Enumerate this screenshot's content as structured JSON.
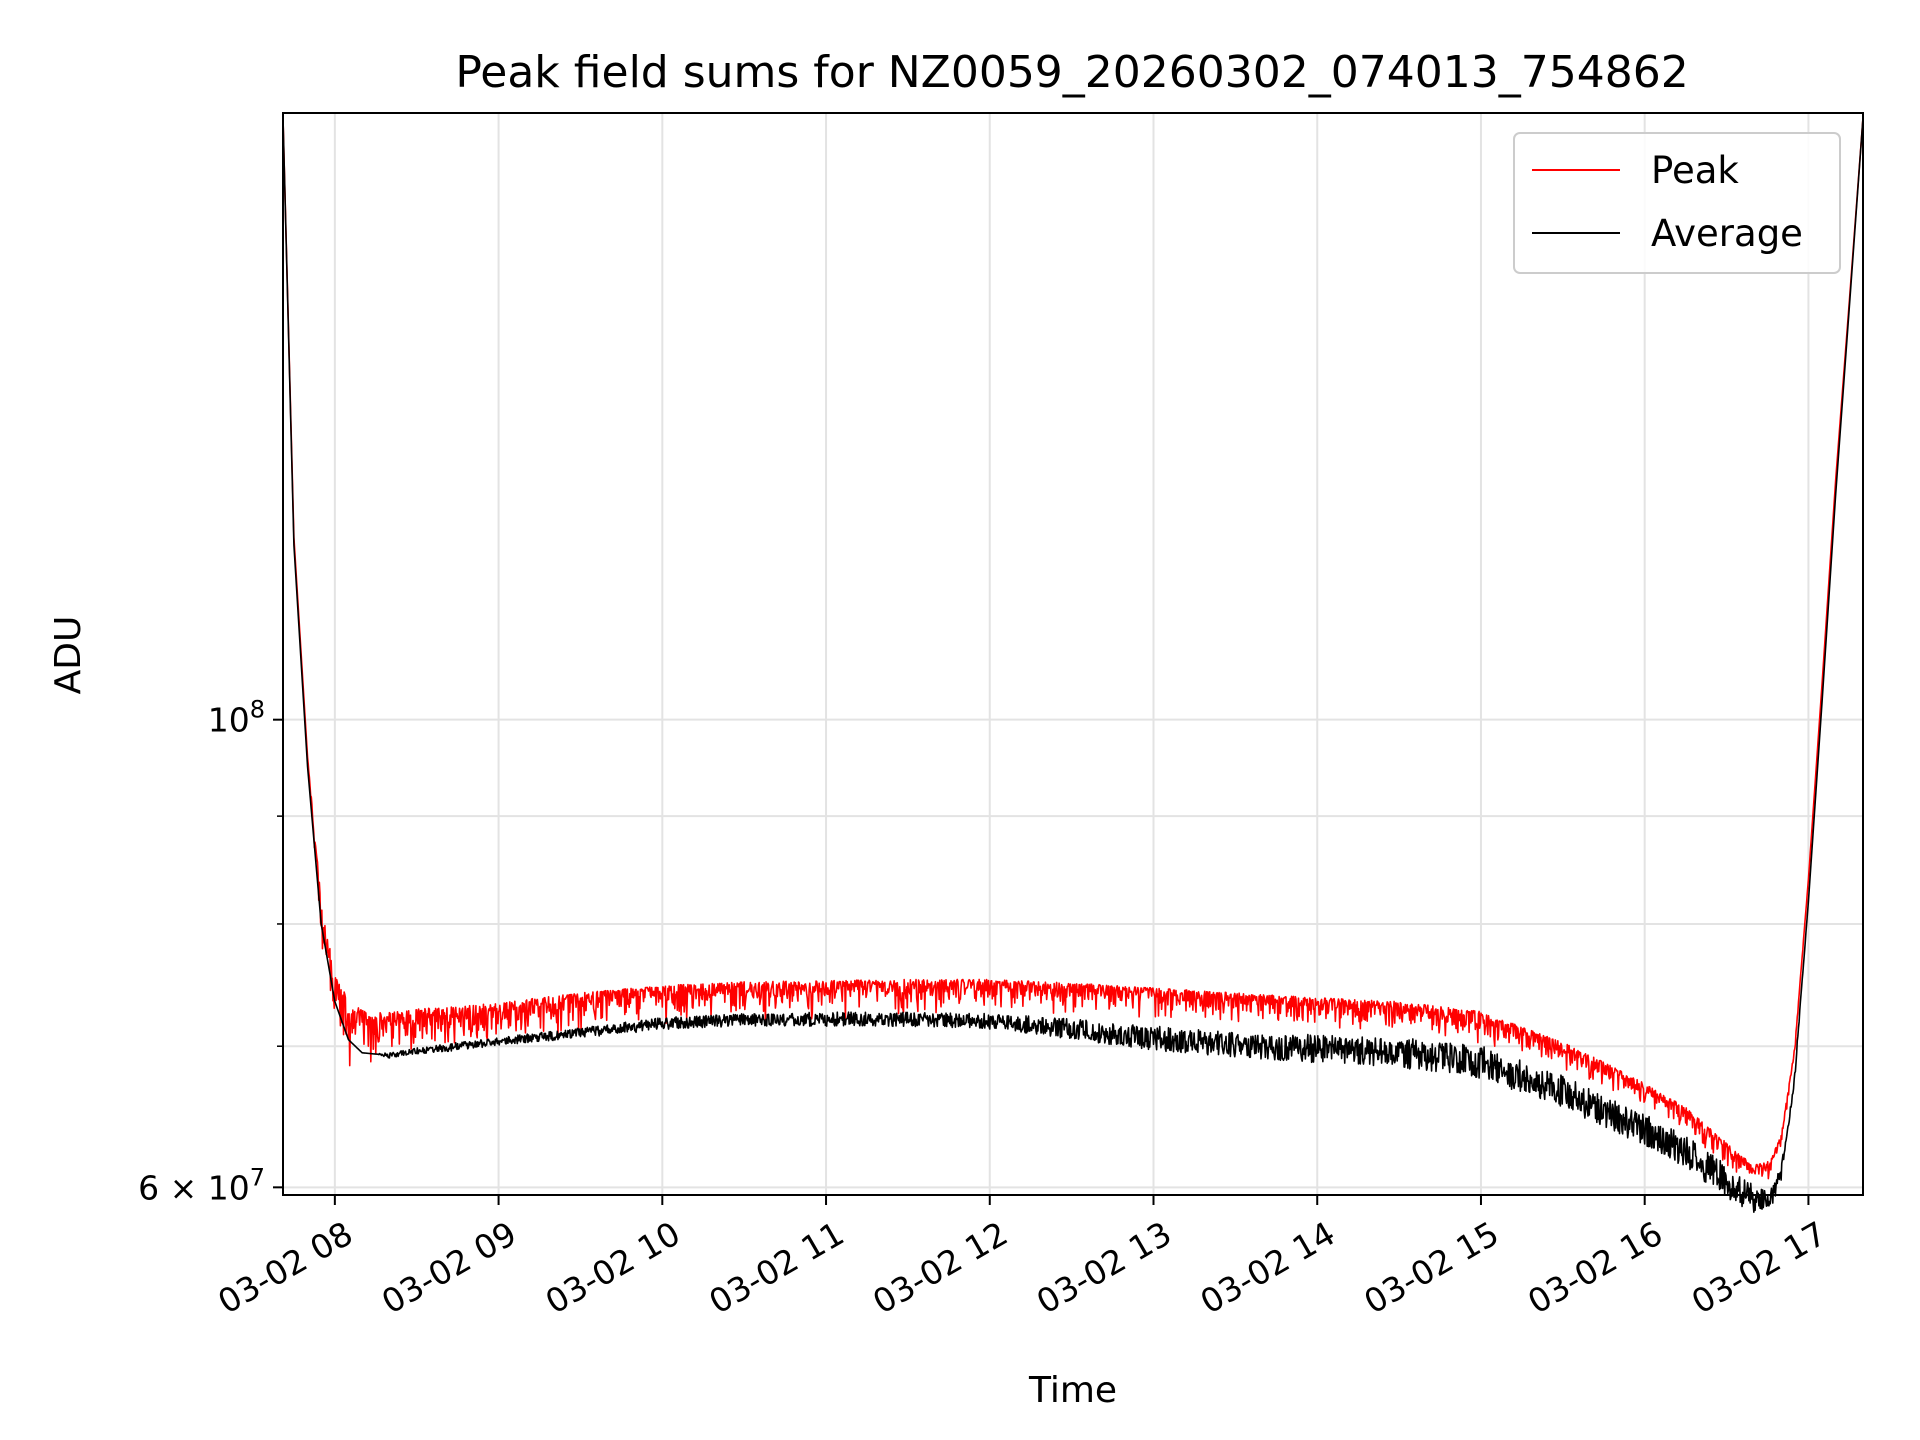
{
  "chart_data": {
    "type": "line",
    "title": "Peak field sums for NZ0059_20260302_074013_754862",
    "xlabel": "Time",
    "ylabel": "ADU",
    "y_scale": "log",
    "ylim": [
      59500000,
      194000000
    ],
    "xlim": [
      "2026-03-02 07:41",
      "2026-03-02 17:20"
    ],
    "grid": true,
    "legend_position": "top-right",
    "x_ticks": [
      "03-02 08",
      "03-02 09",
      "03-02 10",
      "03-02 11",
      "03-02 12",
      "03-02 13",
      "03-02 14",
      "03-02 15",
      "03-02 16",
      "03-02 17"
    ],
    "y_ticks": [
      {
        "value": 100000000,
        "base": "10",
        "exp": "8"
      },
      {
        "value": 60000000,
        "mantissa": "6 × ",
        "base": "10",
        "exp": "7"
      }
    ],
    "y_minor_ticks": [
      70000000,
      80000000,
      90000000
    ],
    "x": [
      "2026-03-02 07:41",
      "2026-03-02 07:45",
      "2026-03-02 07:50",
      "2026-03-02 07:55",
      "2026-03-02 08:00",
      "2026-03-02 08:05",
      "2026-03-02 08:10",
      "2026-03-02 08:15",
      "2026-03-02 08:20",
      "2026-03-02 08:30",
      "2026-03-02 08:45",
      "2026-03-02 09:00",
      "2026-03-02 09:30",
      "2026-03-02 10:00",
      "2026-03-02 10:30",
      "2026-03-02 11:00",
      "2026-03-02 11:30",
      "2026-03-02 12:00",
      "2026-03-02 12:30",
      "2026-03-02 13:00",
      "2026-03-02 13:30",
      "2026-03-02 14:00",
      "2026-03-02 14:30",
      "2026-03-02 15:00",
      "2026-03-02 15:30",
      "2026-03-02 15:45",
      "2026-03-02 16:00",
      "2026-03-02 16:15",
      "2026-03-02 16:30",
      "2026-03-02 16:40",
      "2026-03-02 16:46",
      "2026-03-02 16:50",
      "2026-03-02 16:55",
      "2026-03-02 17:00",
      "2026-03-02 17:05",
      "2026-03-02 17:10",
      "2026-03-02 17:15",
      "2026-03-02 17:20"
    ],
    "series": [
      {
        "name": "Peak",
        "color": "#ff0000",
        "values": [
          193000000,
          122000000,
          96000000,
          82000000,
          76000000,
          73500000,
          72800000,
          72600000,
          72700000,
          72900000,
          73100000,
          73400000,
          74200000,
          74800000,
          75100000,
          75200000,
          75300000,
          75300000,
          75000000,
          74600000,
          74200000,
          73800000,
          73500000,
          72700000,
          70300000,
          68800000,
          67200000,
          65500000,
          63000000,
          61500000,
          61800000,
          63500000,
          70000000,
          84000000,
          104000000,
          130000000,
          158000000,
          193000000
        ],
        "noise_amplitude": [
          0,
          0,
          0,
          0.02,
          0.025,
          0.03,
          0.025,
          0.02,
          0.018,
          0.018,
          0.016,
          0.015,
          0.014,
          0.014,
          0.014,
          0.014,
          0.014,
          0.012,
          0.012,
          0.012,
          0.012,
          0.012,
          0.012,
          0.012,
          0.01,
          0.01,
          0.01,
          0.01,
          0.01,
          0.008,
          0.008,
          0.006,
          0.004,
          0,
          0,
          0,
          0,
          0
        ]
      },
      {
        "name": "Average",
        "color": "#000000",
        "values": [
          193000000,
          121000000,
          95000000,
          80000000,
          73500000,
          70500000,
          69500000,
          69400000,
          69500000,
          69800000,
          70200000,
          70600000,
          71300000,
          72100000,
          72400000,
          72500000,
          72500000,
          72400000,
          71900000,
          71300000,
          70800000,
          70600000,
          70400000,
          69700000,
          67500000,
          66000000,
          64800000,
          63200000,
          61200000,
          59900000,
          59700000,
          61200000,
          68000000,
          82000000,
          102000000,
          128000000,
          157000000,
          193000000
        ],
        "noise_amplitude": [
          0,
          0,
          0,
          0,
          0,
          0,
          0,
          0,
          0.003,
          0.003,
          0.004,
          0.004,
          0.005,
          0.006,
          0.006,
          0.007,
          0.007,
          0.008,
          0.01,
          0.012,
          0.012,
          0.014,
          0.015,
          0.016,
          0.016,
          0.016,
          0.016,
          0.016,
          0.016,
          0.014,
          0.01,
          0.008,
          0.004,
          0,
          0,
          0,
          0,
          0
        ]
      }
    ],
    "legend": [
      {
        "label": "Peak",
        "color": "#ff0000"
      },
      {
        "label": "Average",
        "color": "#000000"
      }
    ]
  }
}
